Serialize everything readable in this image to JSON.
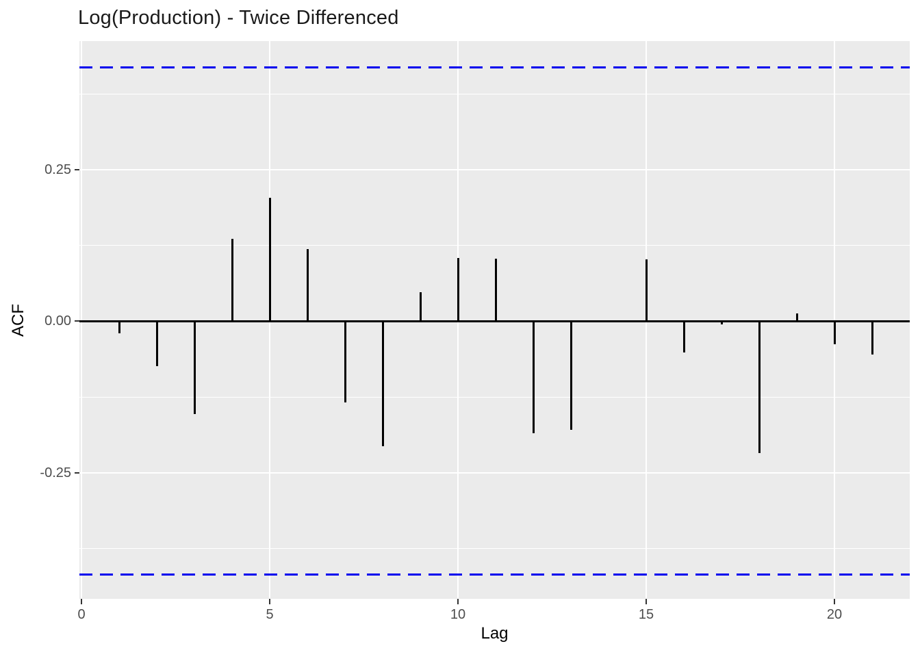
{
  "title": "Log(Production) - Twice Differenced",
  "colors": {
    "background": "#FFFFFF",
    "panel_background": "#EBEBEB",
    "gridline": "#FFFFFF",
    "bar": "#000000",
    "zero_line": "#000000",
    "confidence_line": "#0000EE",
    "tick_label": "#4D4D4D",
    "tick_mark": "#333333",
    "axis_title": "#000000",
    "title": "#1A1A1A"
  },
  "chart_data": {
    "type": "bar",
    "subtype": "acf-correlogram",
    "title": "Log(Production) - Twice Differenced",
    "xlabel": "Lag",
    "ylabel": "ACF",
    "x": [
      1,
      2,
      3,
      4,
      5,
      6,
      7,
      8,
      9,
      10,
      11,
      12,
      13,
      14,
      15,
      16,
      17,
      18,
      19,
      20,
      21
    ],
    "values": [
      -0.02,
      -0.074,
      -0.153,
      0.136,
      0.204,
      0.119,
      -0.134,
      -0.206,
      0.048,
      0.104,
      0.103,
      -0.185,
      -0.179,
      0.0,
      0.102,
      -0.052,
      -0.005,
      -0.218,
      0.013,
      -0.038,
      -0.055
    ],
    "confidence_upper": 0.418,
    "confidence_lower": -0.418,
    "confidence_style": "dashed",
    "x_ticks": [
      {
        "value": 0,
        "label": "0"
      },
      {
        "value": 5,
        "label": "5"
      },
      {
        "value": 10,
        "label": "10"
      },
      {
        "value": 15,
        "label": "15"
      },
      {
        "value": 20,
        "label": "20"
      }
    ],
    "y_ticks": [
      {
        "value": 0.25,
        "label": "0.25"
      },
      {
        "value": 0.0,
        "label": "0.00"
      },
      {
        "value": -0.25,
        "label": "-0.25"
      }
    ],
    "y_minor_gridlines": [
      0.375,
      0.125,
      -0.125,
      -0.375
    ],
    "xlim": [
      -0.055,
      22.0
    ],
    "ylim": [
      -0.458,
      0.462
    ],
    "grid": "horizontal major+minor, vertical major only",
    "legend": "none"
  }
}
